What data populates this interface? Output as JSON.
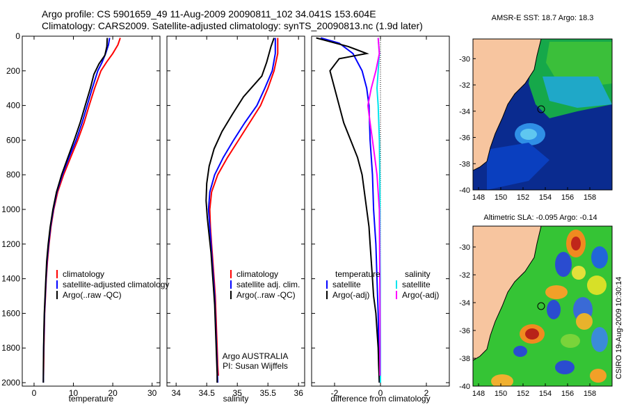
{
  "header": {
    "line1": "Argo profile: CS 5901659_49 11-Aug-2009 20090811_102 34.041S 153.604E",
    "line2": "Climatology: CARS2009. Satellite-adjusted climatology: synTS_20090813.nc (1.9d later)"
  },
  "side_label": "CSIRO 19-Aug-2009 10:30:14",
  "colors": {
    "climatology": "#ff0000",
    "satellite": "#0000ff",
    "argo": "#000000",
    "satellite_salinity": "#00e5ee",
    "argo_salinity": "#ff00ff",
    "land": "#f7c59f"
  },
  "chart_data": [
    {
      "type": "line",
      "id": "temperature",
      "xlabel": "temperature",
      "xlim": [
        -3,
        32
      ],
      "ylim": [
        2020,
        0
      ],
      "xticks": [
        0,
        10,
        20,
        30
      ],
      "yticks": [
        0,
        200,
        400,
        600,
        800,
        1000,
        1200,
        1400,
        1600,
        1800,
        2000
      ],
      "grid": false,
      "legend": [
        "climatology",
        "satellite-adjusted climatology",
        "Argo(..raw -QC)"
      ],
      "series": [
        {
          "name": "climatology",
          "color": "#ff0000",
          "points": [
            [
              21.9,
              10
            ],
            [
              21.3,
              50
            ],
            [
              20.0,
              100
            ],
            [
              18.4,
              150
            ],
            [
              17.0,
              200
            ],
            [
              15.4,
              300
            ],
            [
              14.0,
              400
            ],
            [
              12.7,
              500
            ],
            [
              11.1,
              600
            ],
            [
              9.3,
              700
            ],
            [
              7.5,
              800
            ],
            [
              6.0,
              900
            ],
            [
              5.0,
              1000
            ],
            [
              4.3,
              1100
            ],
            [
              3.8,
              1200
            ],
            [
              3.4,
              1300
            ],
            [
              3.1,
              1400
            ],
            [
              2.9,
              1500
            ],
            [
              2.7,
              1600
            ],
            [
              2.6,
              1700
            ],
            [
              2.5,
              1800
            ],
            [
              2.45,
              1900
            ],
            [
              2.4,
              1960
            ]
          ]
        },
        {
          "name": "satellite-adjusted climatology",
          "color": "#0000ff",
          "points": [
            [
              19.2,
              10
            ],
            [
              18.9,
              50
            ],
            [
              18.2,
              100
            ],
            [
              17.3,
              150
            ],
            [
              16.2,
              200
            ],
            [
              14.8,
              300
            ],
            [
              13.5,
              400
            ],
            [
              12.2,
              500
            ],
            [
              10.7,
              600
            ],
            [
              8.9,
              700
            ],
            [
              7.2,
              800
            ],
            [
              5.8,
              900
            ],
            [
              4.9,
              1000
            ],
            [
              4.2,
              1100
            ],
            [
              3.7,
              1200
            ],
            [
              3.3,
              1300
            ],
            [
              3.05,
              1400
            ],
            [
              2.85,
              1500
            ],
            [
              2.65,
              1600
            ],
            [
              2.55,
              1700
            ],
            [
              2.45,
              1800
            ],
            [
              2.4,
              1900
            ],
            [
              2.35,
              2000
            ]
          ]
        },
        {
          "name": "Argo(..raw -QC)",
          "color": "#000000",
          "points": [
            [
              18.6,
              10
            ],
            [
              18.5,
              60
            ],
            [
              18.0,
              110
            ],
            [
              16.5,
              160
            ],
            [
              15.2,
              220
            ],
            [
              14.3,
              300
            ],
            [
              13.0,
              400
            ],
            [
              11.7,
              500
            ],
            [
              10.2,
              600
            ],
            [
              8.6,
              700
            ],
            [
              7.0,
              800
            ],
            [
              5.7,
              900
            ],
            [
              4.8,
              1000
            ],
            [
              4.1,
              1100
            ],
            [
              3.6,
              1200
            ],
            [
              3.2,
              1300
            ],
            [
              3.0,
              1400
            ],
            [
              2.8,
              1500
            ],
            [
              2.6,
              1600
            ],
            [
              2.5,
              1700
            ],
            [
              2.42,
              1800
            ],
            [
              2.38,
              1900
            ],
            [
              2.35,
              2000
            ]
          ]
        }
      ]
    },
    {
      "type": "line",
      "id": "salinity",
      "xlabel": "salinity",
      "xlim": [
        33.85,
        36.1
      ],
      "ylim": [
        2020,
        0
      ],
      "xticks": [
        34,
        34.5,
        35,
        35.5,
        36
      ],
      "xtick_labels": [
        "34",
        "34.5",
        "35",
        "35.5",
        "36"
      ],
      "grid": false,
      "legend": [
        "climatology",
        "satellite adj. clim.",
        "Argo(..raw -QC)"
      ],
      "annotation": [
        "Argo AUSTRALIA",
        "PI: Susan Wijffels"
      ],
      "series": [
        {
          "name": "climatology",
          "color": "#ff0000",
          "points": [
            [
              35.66,
              10
            ],
            [
              35.66,
              100
            ],
            [
              35.6,
              200
            ],
            [
              35.5,
              300
            ],
            [
              35.38,
              400
            ],
            [
              35.2,
              500
            ],
            [
              35.02,
              600
            ],
            [
              34.84,
              700
            ],
            [
              34.68,
              800
            ],
            [
              34.58,
              900
            ],
            [
              34.55,
              1000
            ],
            [
              34.56,
              1100
            ],
            [
              34.58,
              1200
            ],
            [
              34.6,
              1300
            ],
            [
              34.62,
              1400
            ],
            [
              34.64,
              1500
            ],
            [
              34.65,
              1600
            ],
            [
              34.66,
              1700
            ],
            [
              34.67,
              1800
            ],
            [
              34.68,
              1900
            ],
            [
              34.69,
              1960
            ]
          ]
        },
        {
          "name": "satellite adj. clim.",
          "color": "#0000ff",
          "points": [
            [
              35.62,
              10
            ],
            [
              35.62,
              100
            ],
            [
              35.57,
              200
            ],
            [
              35.45,
              300
            ],
            [
              35.32,
              400
            ],
            [
              35.12,
              500
            ],
            [
              34.94,
              600
            ],
            [
              34.77,
              700
            ],
            [
              34.63,
              800
            ],
            [
              34.55,
              900
            ],
            [
              34.53,
              1000
            ],
            [
              34.55,
              1100
            ],
            [
              34.57,
              1200
            ],
            [
              34.59,
              1300
            ],
            [
              34.61,
              1400
            ],
            [
              34.63,
              1500
            ],
            [
              34.64,
              1600
            ],
            [
              34.65,
              1700
            ],
            [
              34.66,
              1800
            ],
            [
              34.67,
              1900
            ],
            [
              34.68,
              2000
            ]
          ]
        },
        {
          "name": "Argo(..raw -QC)",
          "color": "#000000",
          "points": [
            [
              35.6,
              10
            ],
            [
              35.55,
              60
            ],
            [
              35.48,
              150
            ],
            [
              35.4,
              230
            ],
            [
              35.1,
              350
            ],
            [
              34.92,
              450
            ],
            [
              34.75,
              550
            ],
            [
              34.62,
              650
            ],
            [
              34.54,
              750
            ],
            [
              34.5,
              850
            ],
            [
              34.49,
              950
            ],
            [
              34.51,
              1050
            ],
            [
              34.54,
              1150
            ],
            [
              34.57,
              1250
            ],
            [
              34.59,
              1350
            ],
            [
              34.61,
              1450
            ],
            [
              34.63,
              1550
            ],
            [
              34.64,
              1650
            ],
            [
              34.65,
              1750
            ],
            [
              34.66,
              1850
            ],
            [
              34.67,
              1950
            ],
            [
              34.67,
              2000
            ]
          ]
        }
      ]
    },
    {
      "type": "line",
      "id": "difference",
      "xlabel": "difference from climatology",
      "xlim": [
        -3,
        3
      ],
      "ylim": [
        2020,
        0
      ],
      "xticks": [
        -2,
        0,
        2
      ],
      "grid": false,
      "legend": [
        "temperature",
        "satellite",
        "Argo(-adj)",
        "salinity",
        "satellite",
        "Argo(-adj)"
      ],
      "series": [
        {
          "name": "temperature satellite",
          "color": "#0000ff",
          "points": [
            [
              -2.6,
              10
            ],
            [
              -1.8,
              40
            ],
            [
              -1.2,
              100
            ],
            [
              -1.0,
              150
            ],
            [
              -0.8,
              200
            ],
            [
              -0.6,
              300
            ],
            [
              -0.5,
              400
            ],
            [
              -0.45,
              600
            ],
            [
              -0.35,
              800
            ],
            [
              -0.3,
              1000
            ],
            [
              -0.2,
              1200
            ],
            [
              -0.15,
              1400
            ],
            [
              -0.1,
              1600
            ],
            [
              -0.08,
              1800
            ],
            [
              -0.05,
              2000
            ]
          ]
        },
        {
          "name": "temperature Argo(-adj)",
          "color": "#000000",
          "points": [
            [
              -2.8,
              10
            ],
            [
              -1.4,
              60
            ],
            [
              -0.6,
              100
            ],
            [
              -1.8,
              130
            ],
            [
              -2.2,
              200
            ],
            [
              -2.0,
              300
            ],
            [
              -1.8,
              400
            ],
            [
              -1.6,
              500
            ],
            [
              -1.3,
              600
            ],
            [
              -1.0,
              700
            ],
            [
              -0.8,
              800
            ],
            [
              -0.7,
              900
            ],
            [
              -0.6,
              1000
            ],
            [
              -0.5,
              1100
            ],
            [
              -0.45,
              1200
            ],
            [
              -0.4,
              1300
            ],
            [
              -0.35,
              1400
            ],
            [
              -0.3,
              1500
            ],
            [
              -0.2,
              1600
            ],
            [
              -0.15,
              1700
            ],
            [
              -0.1,
              1800
            ],
            [
              -0.08,
              1900
            ],
            [
              -0.05,
              2000
            ]
          ]
        },
        {
          "name": "salinity satellite",
          "color": "#00e5ee",
          "points": [
            [
              -0.1,
              10
            ],
            [
              -0.05,
              100
            ],
            [
              -0.1,
              200
            ],
            [
              -0.15,
              300
            ],
            [
              -0.1,
              400
            ],
            [
              -0.05,
              600
            ],
            [
              -0.03,
              800
            ],
            [
              -0.02,
              1000
            ],
            [
              -0.02,
              1200
            ],
            [
              -0.01,
              1400
            ],
            [
              -0.01,
              1600
            ],
            [
              0.0,
              1800
            ],
            [
              0.0,
              2000
            ]
          ]
        },
        {
          "name": "salinity Argo(-adj)",
          "color": "#ff00ff",
          "points": [
            [
              -0.1,
              10
            ],
            [
              -0.05,
              100
            ],
            [
              -0.2,
              200
            ],
            [
              -0.4,
              300
            ],
            [
              -0.55,
              400
            ],
            [
              -0.45,
              500
            ],
            [
              -0.35,
              600
            ],
            [
              -0.25,
              700
            ],
            [
              -0.15,
              800
            ],
            [
              -0.1,
              900
            ],
            [
              -0.05,
              1000
            ],
            [
              -0.04,
              1200
            ],
            [
              -0.03,
              1400
            ],
            [
              -0.02,
              1600
            ],
            [
              -0.02,
              1800
            ],
            [
              -0.02,
              1960
            ]
          ]
        }
      ]
    },
    {
      "type": "heatmap",
      "id": "sst_map",
      "title": "AMSR-E SST: 18.7 Argo: 18.3",
      "xlim": [
        147.5,
        160
      ],
      "ylim": [
        -40,
        -28.5
      ],
      "xticks": [
        148,
        150,
        152,
        154,
        156,
        158
      ],
      "yticks": [
        -30,
        -32,
        -34,
        -36,
        -38,
        -40
      ],
      "profile_location": [
        153.604,
        -34.041
      ]
    },
    {
      "type": "heatmap",
      "id": "sla_map",
      "title": "Altimetric SLA: -0.095 Argo: -0.14",
      "xlim": [
        147.5,
        160
      ],
      "ylim": [
        -40,
        -28.5
      ],
      "xticks": [
        148,
        150,
        152,
        154,
        156,
        158
      ],
      "yticks": [
        -30,
        -32,
        -34,
        -36,
        -38,
        -40
      ],
      "profile_location": [
        153.604,
        -34.041
      ]
    }
  ]
}
